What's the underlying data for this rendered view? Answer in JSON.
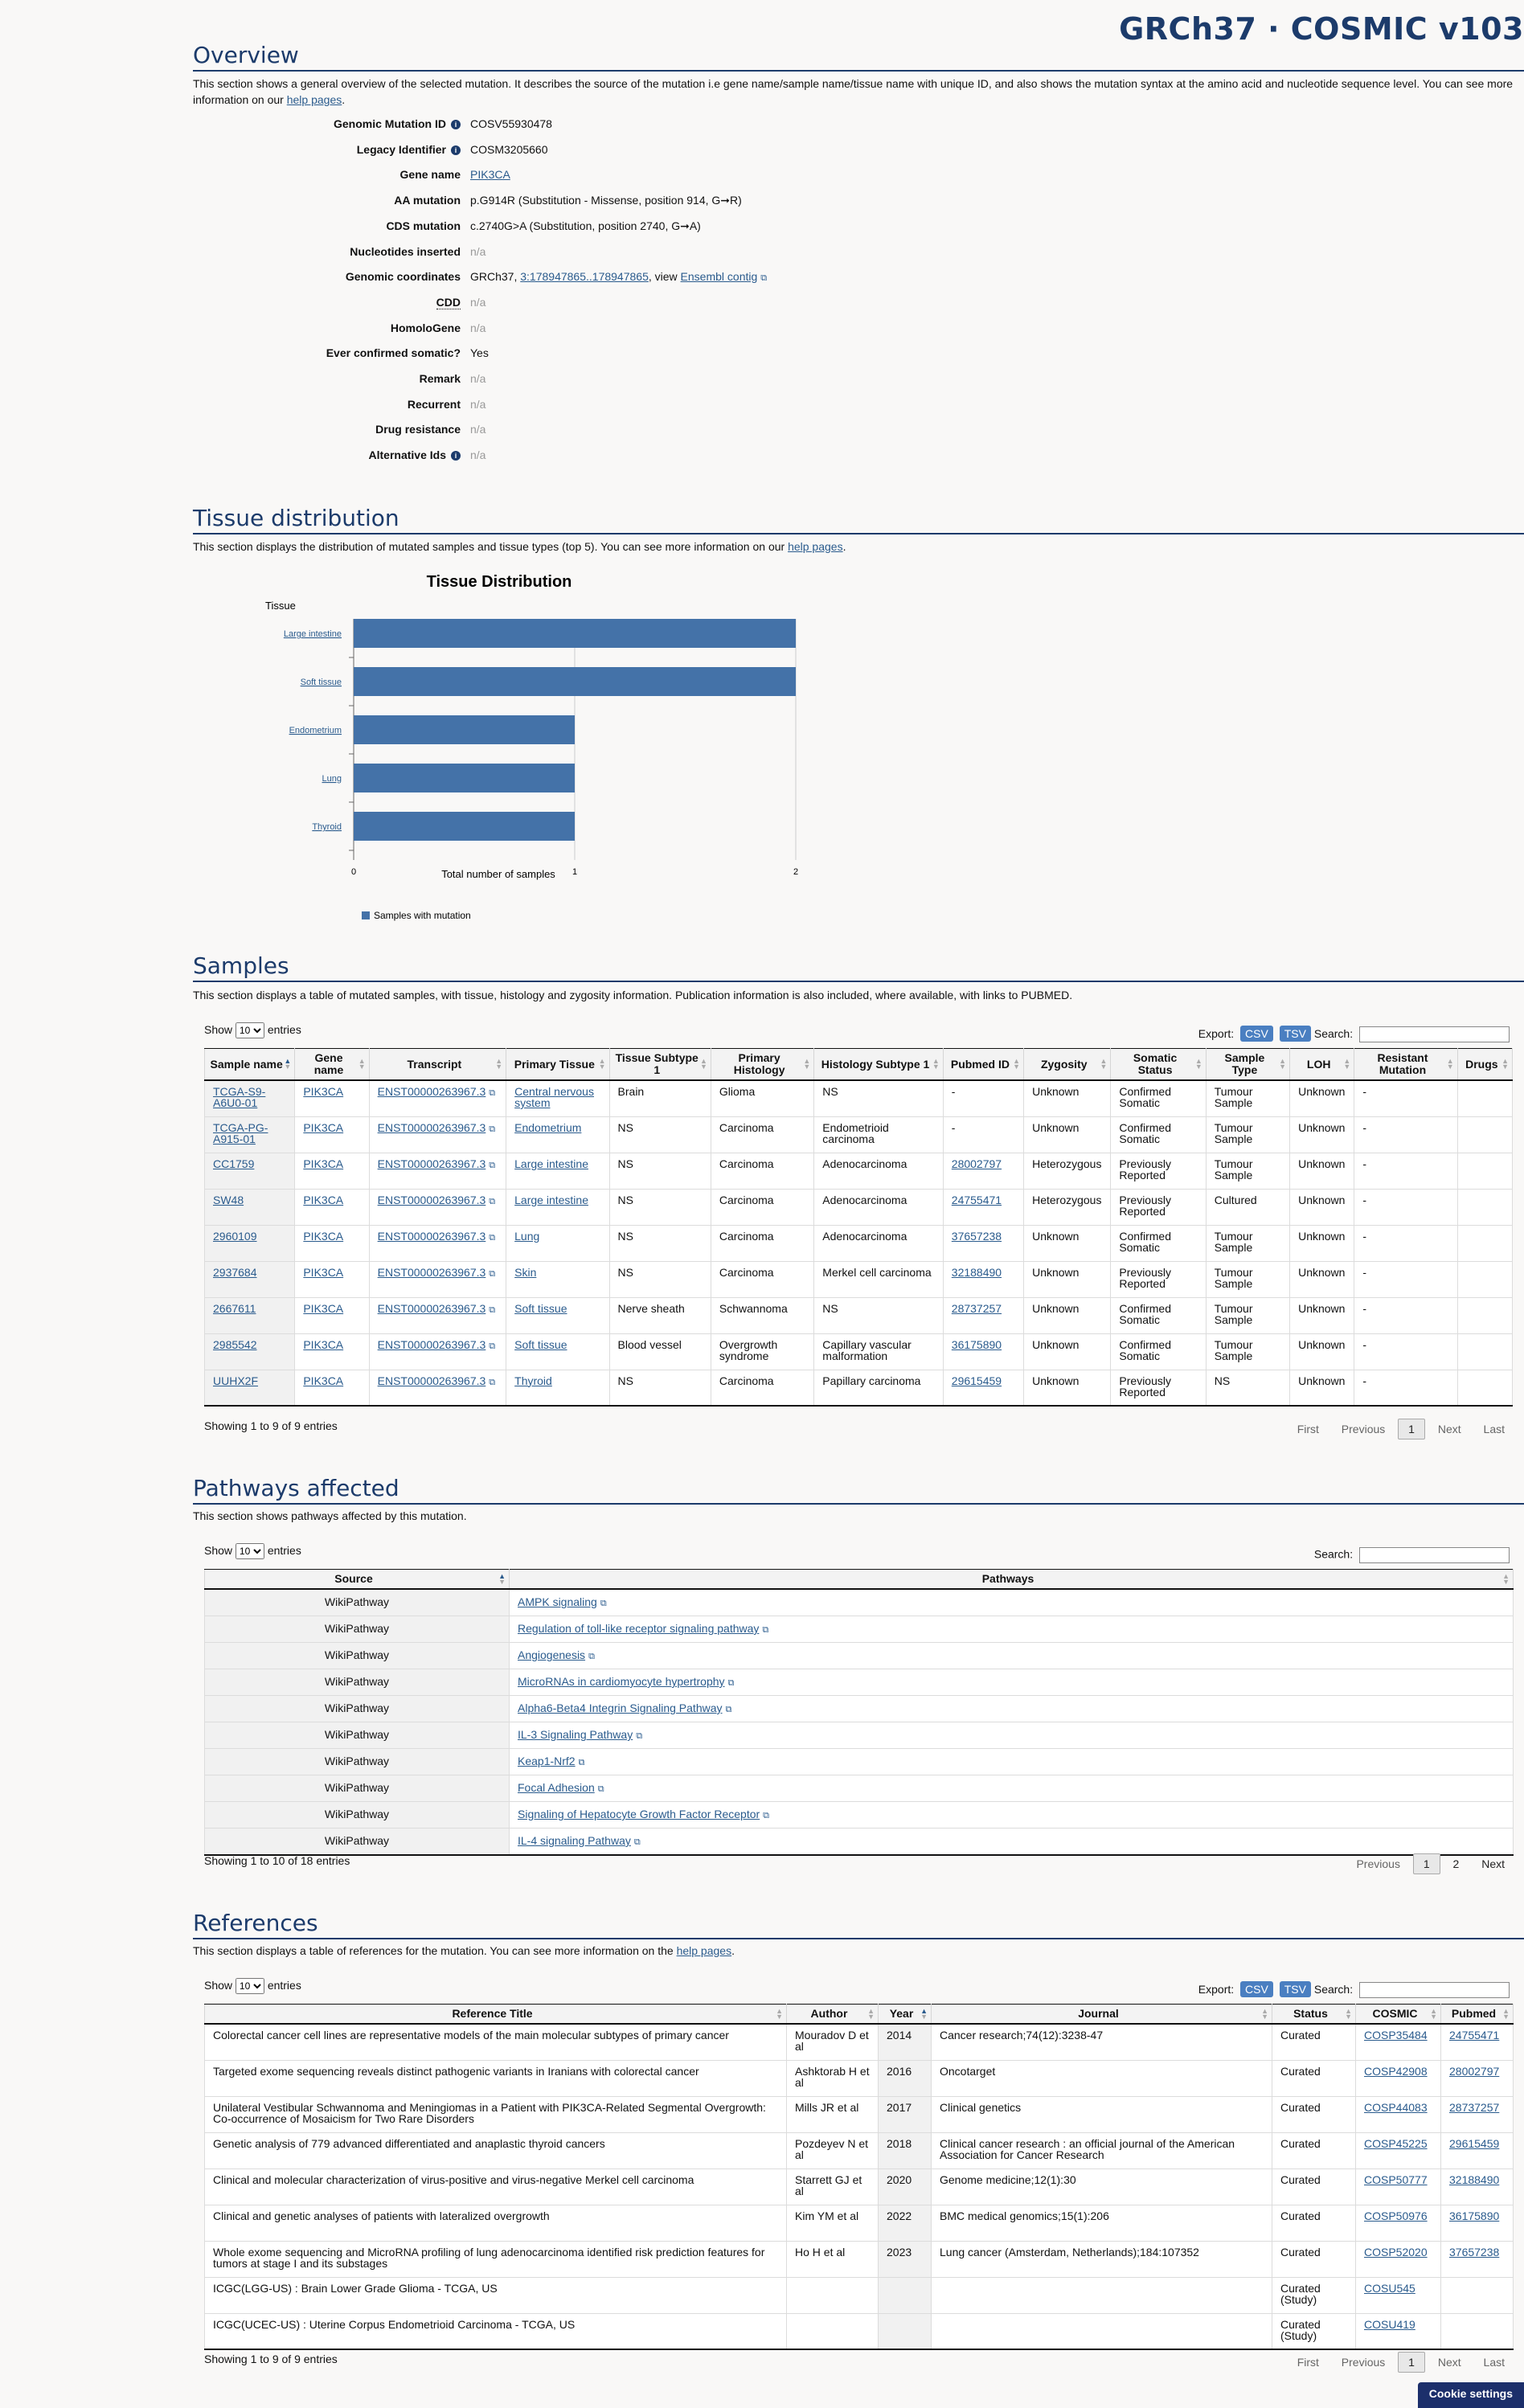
{
  "header": {
    "title": "GRCh37 · COSMIC v103"
  },
  "overview": {
    "title": "Overview",
    "desc_prefix": "This section shows a general overview of the selected mutation. It describes the source of the mutation i.e gene name/sample name/tissue name with unique ID, and also shows the mutation syntax at the amino acid and nucleotide sequence level. You can see more information on our ",
    "help_link": "help pages",
    "desc_suffix": ".",
    "rows": [
      {
        "label": "Genomic Mutation ID",
        "info": true,
        "value": "COSV55930478"
      },
      {
        "label": "Legacy Identifier",
        "info": true,
        "value": "COSM3205660"
      },
      {
        "label": "Gene name",
        "value": "PIK3CA",
        "link": true
      },
      {
        "label": "AA mutation",
        "value": "p.G914R (Substitution - Missense, position 914, G➞R)"
      },
      {
        "label": "CDS mutation",
        "value": "c.2740G>A (Substitution, position 2740, G➞A)"
      },
      {
        "label": "Nucleotides inserted",
        "value": "n/a",
        "na": true
      },
      {
        "label": "Genomic coordinates",
        "value_prefix": "GRCh37, ",
        "value_link": "3:178947865..178947865",
        "value_mid": ", view ",
        "value_link2": "Ensembl contig"
      },
      {
        "label": "CDD",
        "value": "n/a",
        "na": true,
        "abbr": true
      },
      {
        "label": "HomoloGene",
        "value": "n/a",
        "na": true
      },
      {
        "label": "Ever confirmed somatic?",
        "value": "Yes"
      },
      {
        "label": "Remark",
        "value": "n/a",
        "na": true
      },
      {
        "label": "Recurrent",
        "value": "n/a",
        "na": true
      },
      {
        "label": "Drug resistance",
        "value": "n/a",
        "na": true
      },
      {
        "label": "Alternative Ids",
        "info": true,
        "value": "n/a",
        "na": true
      }
    ]
  },
  "tissue": {
    "title": "Tissue distribution",
    "desc_prefix": "This section displays the distribution of mutated samples and tissue types (top 5). You can see more information on our ",
    "help_link": "help pages",
    "desc_suffix": "."
  },
  "chart_data": {
    "type": "bar",
    "orientation": "horizontal",
    "title": "Tissue Distribution",
    "ylabel": "Tissue",
    "xlabel": "Total number of samples",
    "categories": [
      "Large intestine",
      "Soft tissue",
      "Endometrium",
      "Lung",
      "Thyroid"
    ],
    "series": [
      {
        "name": "Samples with mutation",
        "values": [
          2,
          2,
          1,
          1,
          1
        ],
        "color": "#4472a8"
      }
    ],
    "xlim": [
      0,
      2
    ],
    "xticks": [
      "0",
      "1",
      "2"
    ],
    "grid": true,
    "legend": "bottom"
  },
  "samples": {
    "title": "Samples",
    "desc": "This section displays a table of mutated samples, with tissue, histology and zygosity information. Publication information is also included, where available, with links to PUBMED.",
    "show_label": "Show",
    "entries_label": "entries",
    "page_size": "10",
    "export_label": "Export:",
    "csv": "CSV",
    "tsv": "TSV",
    "search_label": "Search:",
    "columns": [
      "Sample name",
      "Gene name",
      "Transcript",
      "Primary Tissue",
      "Tissue Subtype 1",
      "Primary Histology",
      "Histology Subtype 1",
      "Pubmed ID",
      "Zygosity",
      "Somatic Status",
      "Sample Type",
      "LOH",
      "Resistant Mutation",
      "Drugs"
    ],
    "rows": [
      [
        "TCGA-S9-A6U0-01",
        "PIK3CA",
        "ENST00000263967.3",
        "Central nervous system",
        "Brain",
        "Glioma",
        "NS",
        "-",
        "Unknown",
        "Confirmed Somatic",
        "Tumour Sample",
        "Unknown",
        "-",
        ""
      ],
      [
        "TCGA-PG-A915-01",
        "PIK3CA",
        "ENST00000263967.3",
        "Endometrium",
        "NS",
        "Carcinoma",
        "Endometrioid carcinoma",
        "-",
        "Unknown",
        "Confirmed Somatic",
        "Tumour Sample",
        "Unknown",
        "-",
        ""
      ],
      [
        "CC1759",
        "PIK3CA",
        "ENST00000263967.3",
        "Large intestine",
        "NS",
        "Carcinoma",
        "Adenocarcinoma",
        "28002797",
        "Heterozygous",
        "Previously Reported",
        "Tumour Sample",
        "Unknown",
        "-",
        ""
      ],
      [
        "SW48",
        "PIK3CA",
        "ENST00000263967.3",
        "Large intestine",
        "NS",
        "Carcinoma",
        "Adenocarcinoma",
        "24755471",
        "Heterozygous",
        "Previously Reported",
        "Cultured",
        "Unknown",
        "-",
        ""
      ],
      [
        "2960109",
        "PIK3CA",
        "ENST00000263967.3",
        "Lung",
        "NS",
        "Carcinoma",
        "Adenocarcinoma",
        "37657238",
        "Unknown",
        "Confirmed Somatic",
        "Tumour Sample",
        "Unknown",
        "-",
        ""
      ],
      [
        "2937684",
        "PIK3CA",
        "ENST00000263967.3",
        "Skin",
        "NS",
        "Carcinoma",
        "Merkel cell carcinoma",
        "32188490",
        "Unknown",
        "Previously Reported",
        "Tumour Sample",
        "Unknown",
        "-",
        ""
      ],
      [
        "2667611",
        "PIK3CA",
        "ENST00000263967.3",
        "Soft tissue",
        "Nerve sheath",
        "Schwannoma",
        "NS",
        "28737257",
        "Unknown",
        "Confirmed Somatic",
        "Tumour Sample",
        "Unknown",
        "-",
        ""
      ],
      [
        "2985542",
        "PIK3CA",
        "ENST00000263967.3",
        "Soft tissue",
        "Blood vessel",
        "Overgrowth syndrome",
        "Capillary vascular malformation",
        "36175890",
        "Unknown",
        "Confirmed Somatic",
        "Tumour Sample",
        "Unknown",
        "-",
        ""
      ],
      [
        "UUHX2F",
        "PIK3CA",
        "ENST00000263967.3",
        "Thyroid",
        "NS",
        "Carcinoma",
        "Papillary carcinoma",
        "29615459",
        "Unknown",
        "Previously Reported",
        "NS",
        "Unknown",
        "-",
        ""
      ]
    ],
    "info": "Showing 1 to 9 of 9 entries",
    "pager": {
      "first": "First",
      "previous": "Previous",
      "page": "1",
      "next": "Next",
      "last": "Last"
    }
  },
  "pathways": {
    "title": "Pathways affected",
    "desc": "This section shows pathways affected by this mutation.",
    "show_label": "Show",
    "entries_label": "entries",
    "page_size": "10",
    "search_label": "Search:",
    "columns": [
      "Source",
      "Pathways"
    ],
    "rows": [
      [
        "WikiPathway",
        "AMPK signaling"
      ],
      [
        "WikiPathway",
        "Regulation of toll-like receptor signaling pathway"
      ],
      [
        "WikiPathway",
        "Angiogenesis"
      ],
      [
        "WikiPathway",
        "MicroRNAs in cardiomyocyte hypertrophy"
      ],
      [
        "WikiPathway",
        "Alpha6-Beta4 Integrin Signaling Pathway"
      ],
      [
        "WikiPathway",
        "IL-3 Signaling Pathway"
      ],
      [
        "WikiPathway",
        "Keap1-Nrf2"
      ],
      [
        "WikiPathway",
        "Focal Adhesion"
      ],
      [
        "WikiPathway",
        "Signaling of Hepatocyte Growth Factor Receptor"
      ],
      [
        "WikiPathway",
        "IL-4 signaling Pathway"
      ]
    ],
    "info": "Showing 1 to 10 of 18 entries",
    "pager": {
      "previous": "Previous",
      "page1": "1",
      "page2": "2",
      "next": "Next"
    }
  },
  "references": {
    "title": "References",
    "desc_prefix": "This section displays a table of references for the mutation. You can see more information on the ",
    "help_link": "help pages",
    "desc_suffix": ".",
    "show_label": "Show",
    "entries_label": "entries",
    "page_size": "10",
    "export_label": "Export:",
    "csv": "CSV",
    "tsv": "TSV",
    "search_label": "Search:",
    "columns": [
      "Reference Title",
      "Author",
      "Year",
      "Journal",
      "Status",
      "COSMIC",
      "Pubmed"
    ],
    "rows": [
      [
        "Colorectal cancer cell lines are representative models of the main molecular subtypes of primary cancer",
        "Mouradov D et al",
        "2014",
        "Cancer research;74(12):3238-47",
        "Curated",
        "COSP35484",
        "24755471"
      ],
      [
        "Targeted exome sequencing reveals distinct pathogenic variants in Iranians with colorectal cancer",
        "Ashktorab H et al",
        "2016",
        "Oncotarget",
        "Curated",
        "COSP42908",
        "28002797"
      ],
      [
        "Unilateral Vestibular Schwannoma and Meningiomas in a Patient with PIK3CA-Related Segmental Overgrowth: Co-occurrence of Mosaicism for Two Rare Disorders",
        "Mills JR et al",
        "2017",
        "Clinical genetics",
        "Curated",
        "COSP44083",
        "28737257"
      ],
      [
        "Genetic analysis of 779 advanced differentiated and anaplastic thyroid cancers",
        "Pozdeyev N et al",
        "2018",
        "Clinical cancer research : an official journal of the American Association for Cancer Research",
        "Curated",
        "COSP45225",
        "29615459"
      ],
      [
        "Clinical and molecular characterization of virus-positive and virus-negative Merkel cell carcinoma",
        "Starrett GJ et al",
        "2020",
        "Genome medicine;12(1):30",
        "Curated",
        "COSP50777",
        "32188490"
      ],
      [
        "Clinical and genetic analyses of patients with lateralized overgrowth",
        "Kim YM et al",
        "2022",
        "BMC medical genomics;15(1):206",
        "Curated",
        "COSP50976",
        "36175890"
      ],
      [
        "Whole exome sequencing and MicroRNA profiling of lung adenocarcinoma identified risk prediction features for tumors at stage I and its substages",
        "Ho H et al",
        "2023",
        "Lung cancer (Amsterdam, Netherlands);184:107352",
        "Curated",
        "COSP52020",
        "37657238"
      ],
      [
        "ICGC(LGG-US) : Brain Lower Grade Glioma - TCGA, US",
        "",
        "",
        "",
        "Curated (Study)",
        "COSU545",
        ""
      ],
      [
        "ICGC(UCEC-US) : Uterine Corpus Endometrioid Carcinoma - TCGA, US",
        "",
        "",
        "",
        "Curated (Study)",
        "COSU419",
        ""
      ]
    ],
    "info": "Showing 1 to 9 of 9 entries",
    "pager": {
      "first": "First",
      "previous": "Previous",
      "page": "1",
      "next": "Next",
      "last": "Last"
    }
  },
  "cookie": {
    "label": "Cookie settings"
  }
}
